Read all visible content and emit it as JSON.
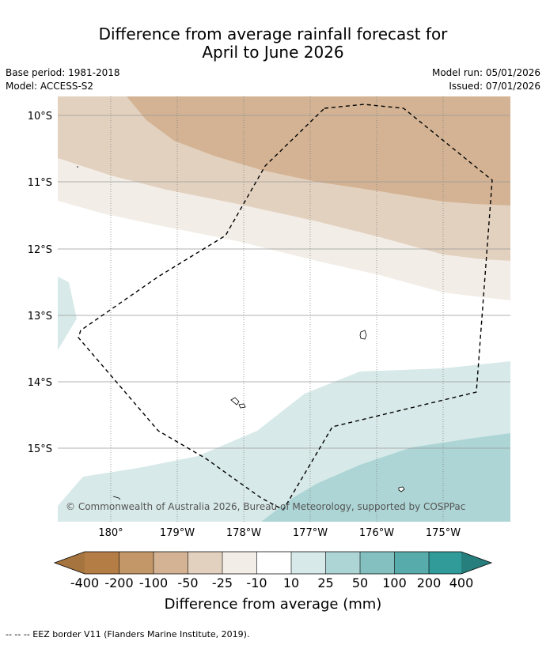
{
  "title_line1": "Difference from average rainfall forecast for",
  "title_line2": "April to June 2026",
  "base_period": "Base period: 1981-2018",
  "model": "Model: ACCESS-S2",
  "model_run": "Model run: 05/01/2026",
  "issued": "Issued: 07/01/2026",
  "copyright": "© Commonwealth of Australia 2026, Bureau of Meteorology, supported by COSPPac",
  "lat_labels": [
    "10°S",
    "11°S",
    "12°S",
    "13°S",
    "14°S",
    "15°S"
  ],
  "lon_labels": [
    "180°",
    "179°W",
    "178°W",
    "177°W",
    "176°W",
    "175°W"
  ],
  "colorbar": {
    "title": "Difference from average (mm)",
    "ticks": [
      "-400",
      "-200",
      "-100",
      "-50",
      "-25",
      "-10",
      "10",
      "25",
      "50",
      "100",
      "200",
      "400"
    ],
    "colors": [
      "#a6743f",
      "#b47d45",
      "#c39767",
      "#d3b393",
      "#e3d1bf",
      "#f2ede7",
      "#ffffff",
      "#d7e9e8",
      "#add5d5",
      "#84c0c0",
      "#58abab",
      "#319b99",
      "#277f7d"
    ]
  },
  "footnote": "--  --  -- EEZ border V11 (Flanders Marine Institute, 2019)."
}
